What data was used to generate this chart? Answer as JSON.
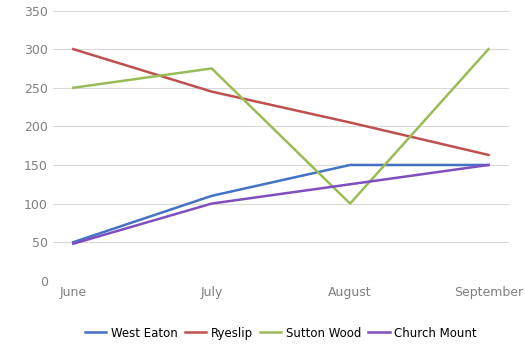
{
  "months": [
    "June",
    "July",
    "August",
    "September"
  ],
  "series": {
    "West Eaton": {
      "values": [
        50,
        110,
        150,
        150
      ],
      "color": "#4472C4"
    },
    "Ryeslip": {
      "values": [
        300,
        245,
        205,
        163
      ],
      "color": "#C0504D"
    },
    "Sutton Wood": {
      "values": [
        250,
        275,
        100,
        300
      ],
      "color": "#9BBB59"
    },
    "Church Mount": {
      "values": [
        48,
        100,
        125,
        150
      ],
      "color": "#7F4FBF"
    }
  },
  "ylim": [
    0,
    350
  ],
  "yticks": [
    0,
    50,
    100,
    150,
    200,
    250,
    300,
    350
  ],
  "background_color": "#FFFFFF",
  "grid_color": "#D9D9D9",
  "legend_order": [
    "West Eaton",
    "Ryeslip",
    "Sutton Wood",
    "Church Mount"
  ],
  "tick_color": "#808080",
  "line_width": 1.8
}
